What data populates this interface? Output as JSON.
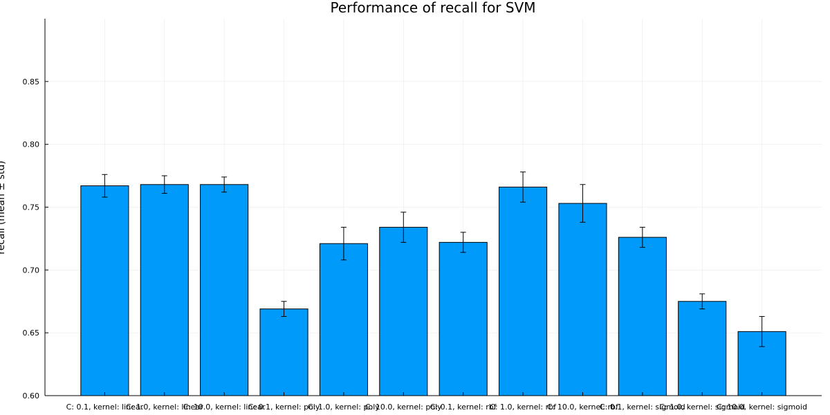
{
  "chart_data": {
    "type": "bar",
    "title": "Performance of recall for SVM",
    "xlabel": "",
    "ylabel": "recall (mean ± std)",
    "ylim": [
      0.6,
      0.9
    ],
    "yticks": [
      0.6,
      0.65,
      0.7,
      0.75,
      0.8,
      0.85
    ],
    "ytick_labels": [
      "0.60",
      "0.65",
      "0.70",
      "0.75",
      "0.80",
      "0.85"
    ],
    "grid": true,
    "legend": "none",
    "bar_color": "#009AFA",
    "categories": [
      "C: 0.1, kernel: linear",
      "C: 1.0, kernel: linear",
      "C: 10.0, kernel: linear",
      "C: 0.1, kernel: poly",
      "C: 1.0, kernel: poly",
      "C: 10.0, kernel: poly",
      "C: 0.1, kernel: rbf",
      "C: 1.0, kernel: rbf",
      "C: 10.0, kernel: rbf",
      "C: 0.1, kernel: sigmoid",
      "C: 1.0, kernel: sigmoid",
      "C: 10.0, kernel: sigmoid"
    ],
    "values": [
      0.767,
      0.768,
      0.768,
      0.669,
      0.721,
      0.734,
      0.722,
      0.766,
      0.753,
      0.726,
      0.675,
      0.651
    ],
    "errors": [
      0.009,
      0.007,
      0.006,
      0.006,
      0.013,
      0.012,
      0.008,
      0.012,
      0.015,
      0.008,
      0.006,
      0.012
    ]
  }
}
